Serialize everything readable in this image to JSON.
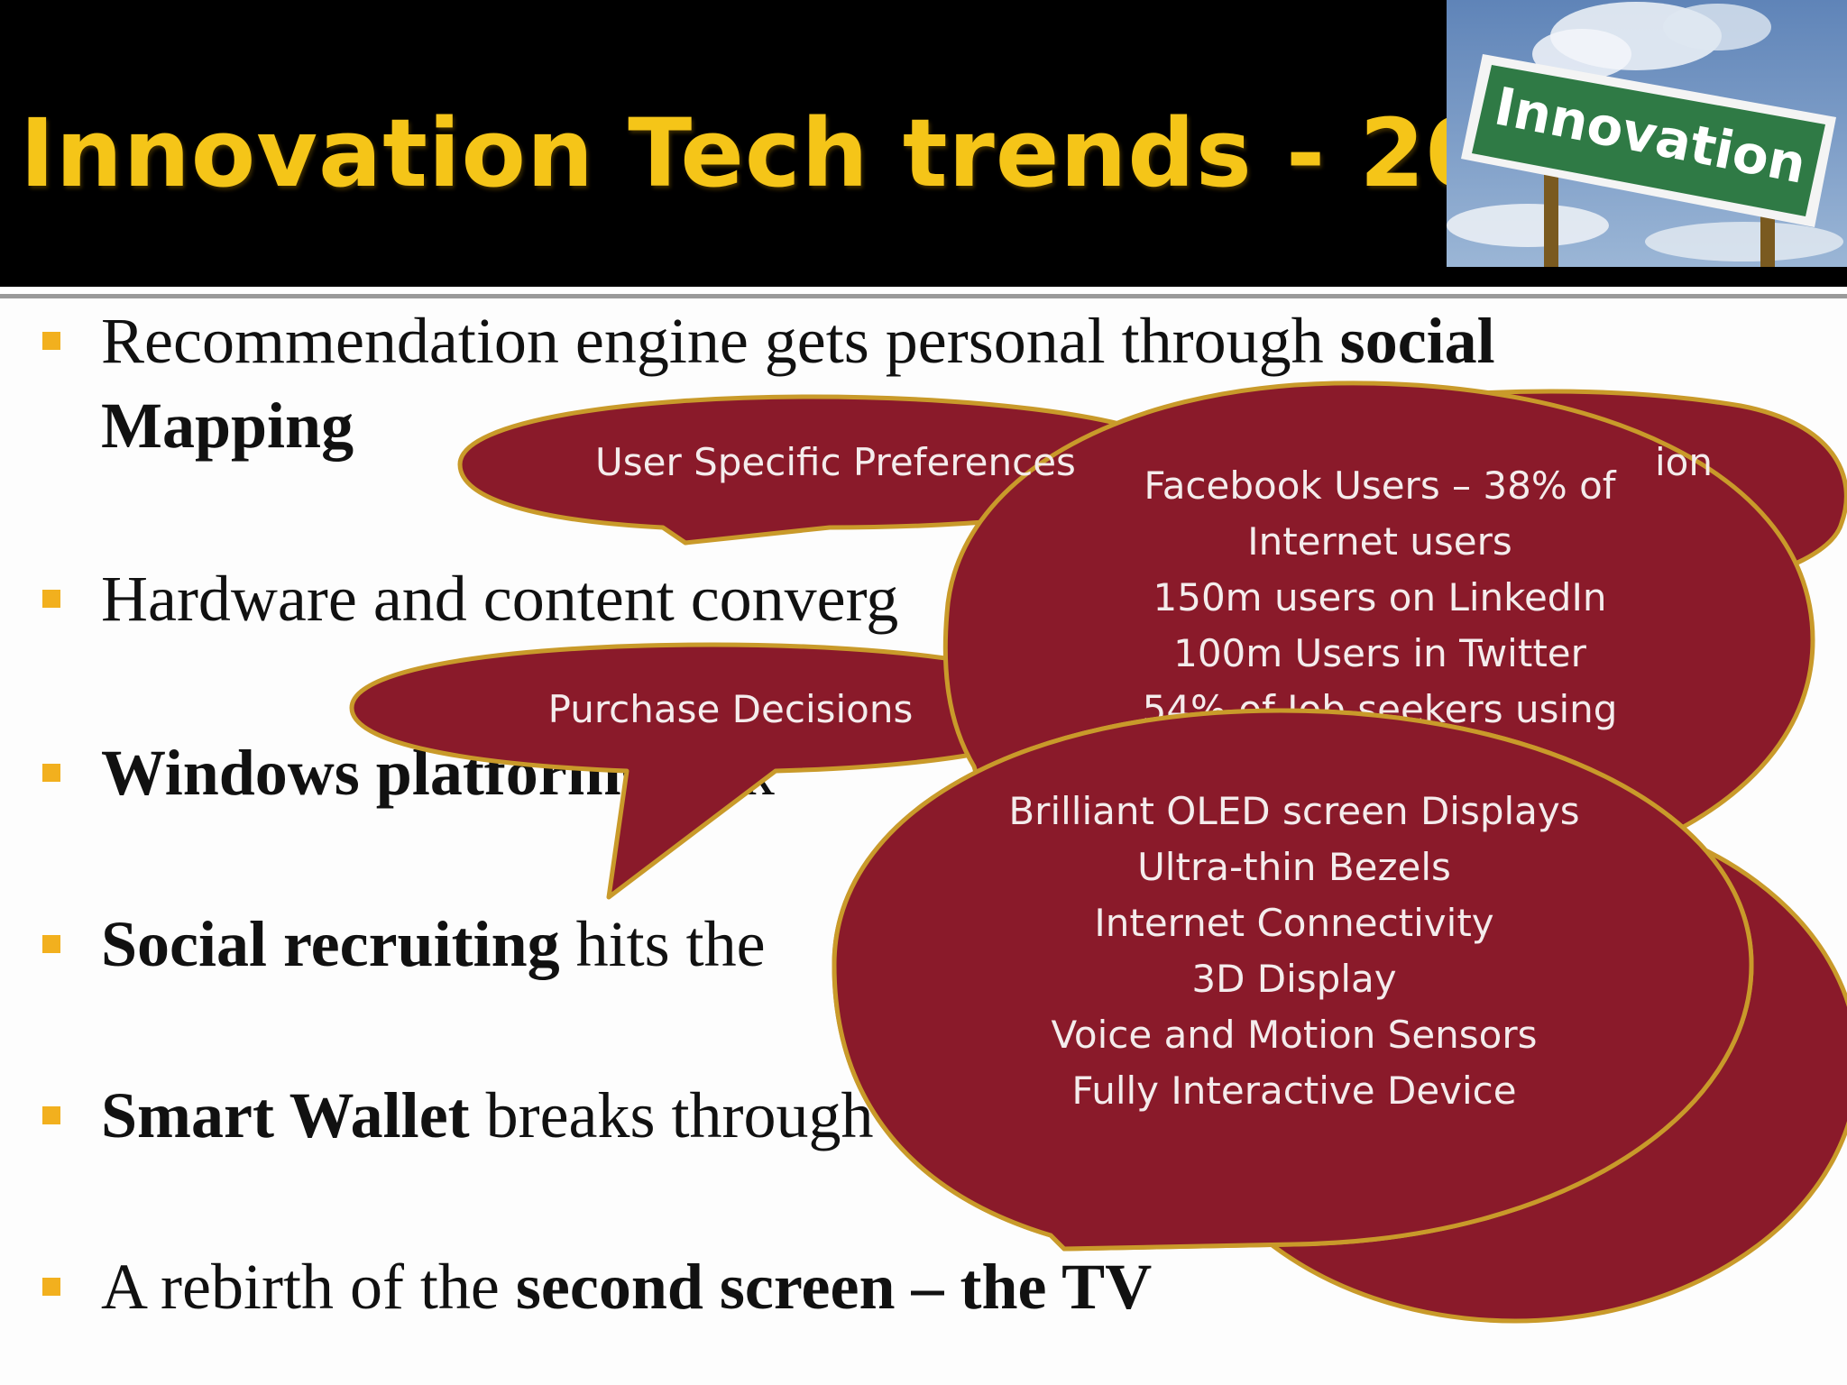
{
  "slide": {
    "title": "Innovation Tech trends - 2012",
    "logo_text": "Innovation",
    "colors": {
      "title": "#f5c518",
      "bubble_fill": "#8a1a2a",
      "bubble_stroke": "#c99a2a",
      "bullet": "#f2b01e",
      "header_bg": "#000000"
    }
  },
  "bullets": [
    {
      "prefix": "Recommendation engine gets personal through ",
      "bold": "social",
      "line2_bold": "Mapping"
    },
    {
      "text": "Hardware and content converg"
    },
    {
      "bold": "Windows platforms",
      "suffix": " pick"
    },
    {
      "bold": "Social recruiting",
      "suffix": " hits the"
    },
    {
      "bold": "Smart Wallet",
      "suffix": " breaks through"
    },
    {
      "prefix": "A rebirth of  the ",
      "bold": "second screen – the TV"
    }
  ],
  "callouts": {
    "user_preferences": "User Specific Preferences",
    "hidden_tail": "ion",
    "purchase_decisions": "Purchase Decisions",
    "social_stats": [
      "Facebook Users – 38% of",
      "Internet users",
      "150m users on LinkedIn",
      "100m Users in Twitter",
      "54% of Job seekers using"
    ],
    "tv_features": [
      "Brilliant OLED screen Displays",
      "Ultra-thin Bezels",
      "Internet Connectivity",
      "3D Display",
      "Voice and Motion Sensors",
      "Fully Interactive Device"
    ]
  },
  "icons": {
    "bullet": "square-bullet-icon",
    "logo": "innovation-road-sign-icon"
  }
}
